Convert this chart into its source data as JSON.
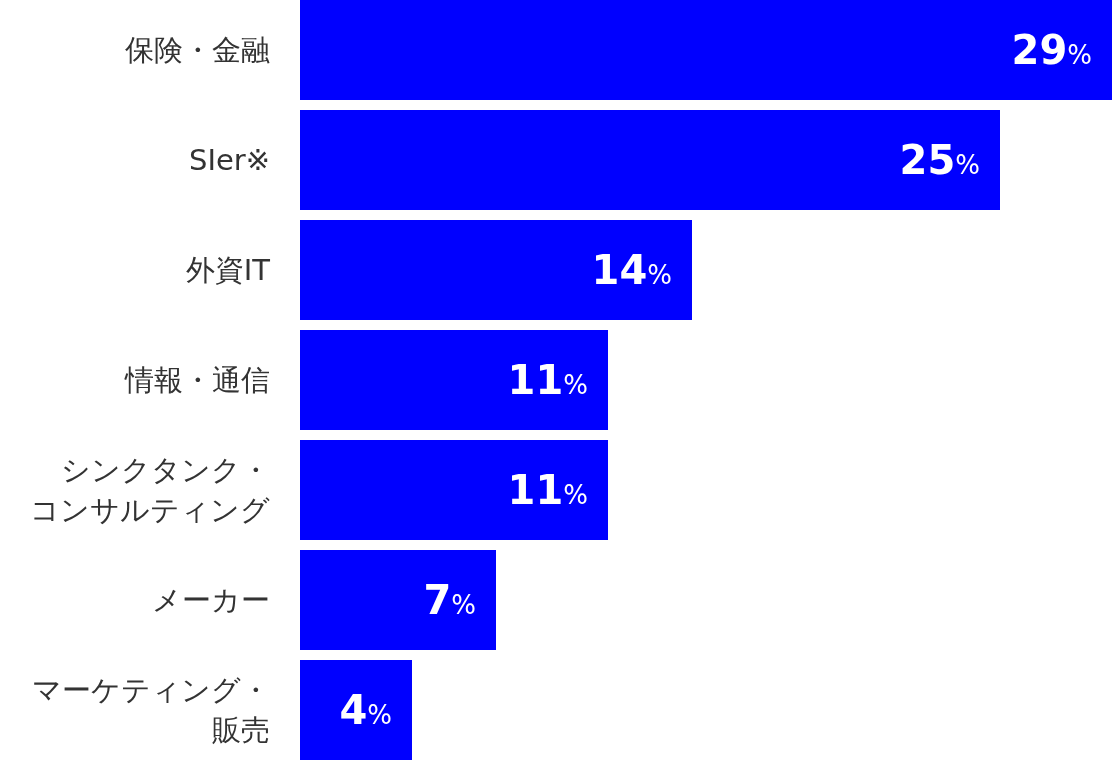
{
  "chart_data": {
    "type": "bar",
    "orientation": "horizontal",
    "color": "#0000ff",
    "categories": [
      "保険・金融",
      "SIer※",
      "外資IT",
      "情報・通信",
      "シンクタンク・コンサルティング",
      "メーカー",
      "マーケティング・販売"
    ],
    "values": [
      29,
      25,
      14,
      11,
      11,
      7,
      4
    ],
    "value_labels": [
      "29%",
      "25%",
      "14%",
      "11%",
      "11%",
      "7%",
      "4%"
    ]
  }
}
